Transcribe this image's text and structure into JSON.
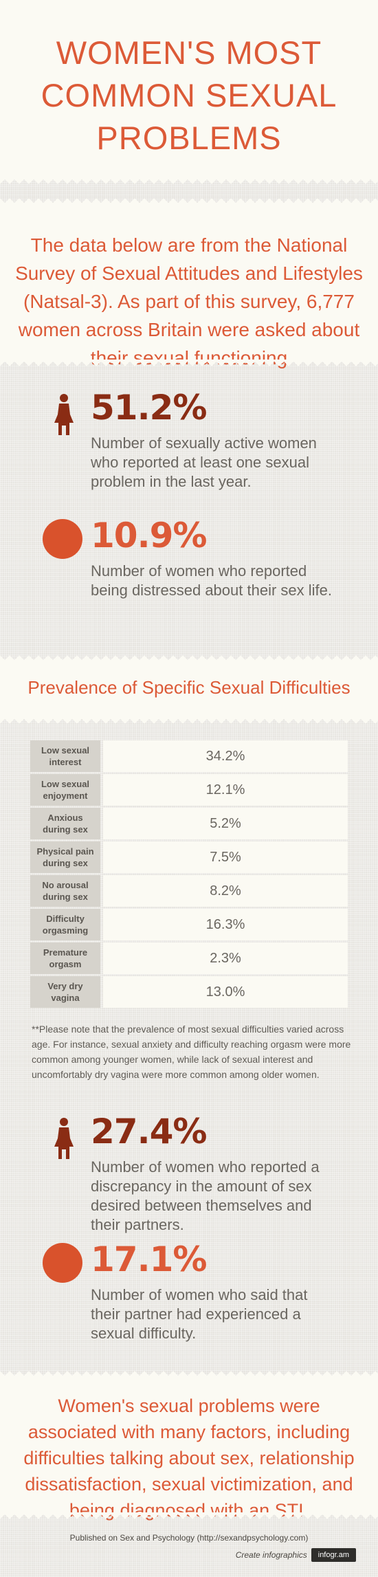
{
  "title_lines": [
    "WOMEN'S MOST",
    "COMMON SEXUAL",
    "PROBLEMS"
  ],
  "intro": "The data below are from the National Survey of Sexual Attitudes and Lifestyles (Natsal-3). As part of this survey, 6,777 women across Britain were asked about their sexual functioning",
  "stats_top": [
    {
      "icon": "woman-icon",
      "value": "51.2%",
      "desc": "Number of sexually active women who reported at least one sexual problem in the last year."
    },
    {
      "icon": "circle-icon",
      "value": "10.9%",
      "desc": "Number of women who reported being distressed about their sex life."
    }
  ],
  "section_title": "Prevalence of Specific Sexual Difficulties",
  "difficulties": [
    {
      "label": "Low sexual interest",
      "value": "34.2%"
    },
    {
      "label": "Low sexual enjoyment",
      "value": "12.1%"
    },
    {
      "label": "Anxious during sex",
      "value": "5.2%"
    },
    {
      "label": "Physical pain during sex",
      "value": "7.5%"
    },
    {
      "label": "No arousal during sex",
      "value": "8.2%"
    },
    {
      "label": "Difficulty orgasming",
      "value": "16.3%"
    },
    {
      "label": "Premature orgasm",
      "value": "2.3%"
    },
    {
      "label": "Very dry vagina",
      "value": "13.0%"
    }
  ],
  "note": "**Please note that the prevalence of most sexual difficulties varied across age. For instance, sexual anxiety and difficulty reaching orgasm were more common among younger women, while lack of sexual interest and uncomfortably dry vagina were more common among older women.",
  "stats_bottom": [
    {
      "icon": "woman-icon",
      "value": "27.4%",
      "desc": "Number of women who reported a discrepancy in the amount of sex desired between themselves and their partners."
    },
    {
      "icon": "circle-icon",
      "value": "17.1%",
      "desc": "Number of women who said that their partner had experienced a sexual difficulty."
    }
  ],
  "conclusion": "Women's sexual problems were associated with many factors, including difficulties talking about sex, relationship dissatisfaction, sexual victimization, and being diagnosed with an STI.",
  "footer": {
    "published": "Published on Sex and Psychology (http://sexandpsychology.com)",
    "create": "Create infographics",
    "brand": "infogr.am"
  },
  "colors": {
    "accent": "#dc5a37",
    "dark_accent": "#8a2c14",
    "circle": "#d9522c",
    "cream": "#fbfaf3"
  }
}
